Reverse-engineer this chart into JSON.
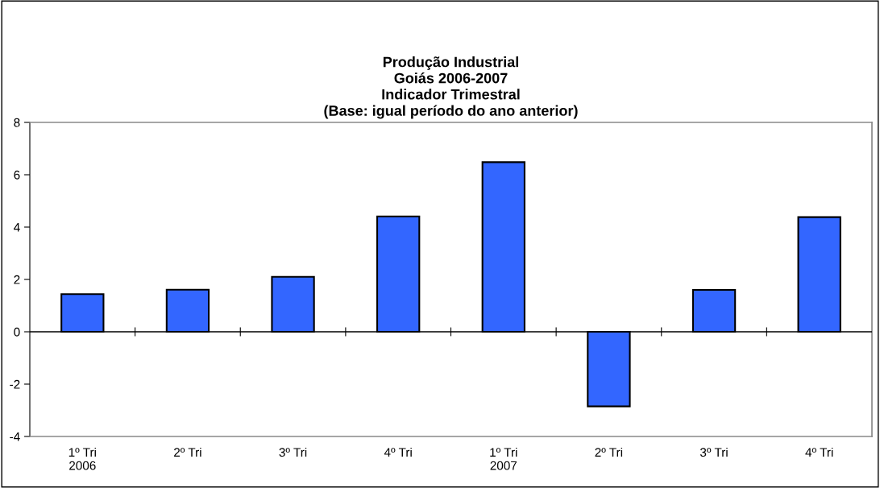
{
  "chart_data": {
    "type": "bar",
    "title": "Produção Industrial\nGoiás 2006-2007\nIndicador Trimestral\n(Base: igual período do ano anterior)",
    "categories": [
      "1º Tri\n2006",
      "2º Tri",
      "3º Tri",
      "4º Tri",
      "1º Tri\n2007",
      "2º Tri",
      "3º Tri",
      "4º Tri"
    ],
    "values": [
      1.44,
      1.61,
      2.1,
      4.41,
      6.48,
      -2.85,
      1.6,
      4.38
    ],
    "color": "#3366ff",
    "ylim": [
      -4,
      8
    ],
    "yticks": [
      -4,
      -2,
      0,
      2,
      4,
      6,
      8
    ],
    "legend": false
  }
}
